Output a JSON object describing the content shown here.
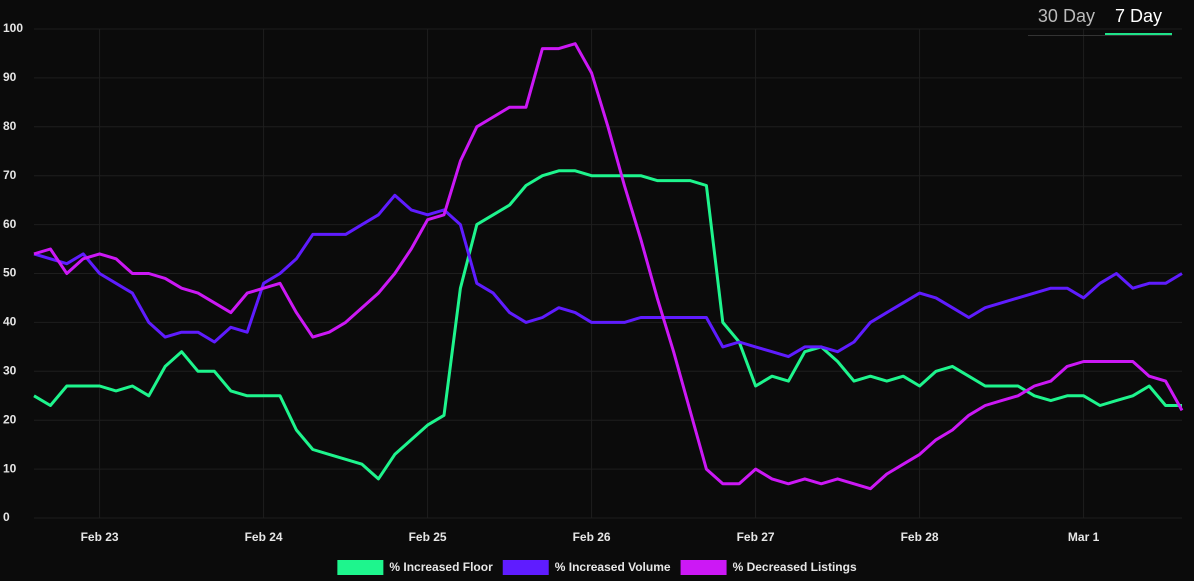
{
  "tabs": [
    "30 Day",
    "7 Day"
  ],
  "selected_tab": 1,
  "chart_data": {
    "type": "line",
    "x": [
      -0.4,
      -0.3,
      -0.2,
      -0.1,
      0,
      0.1,
      0.2,
      0.3,
      0.4,
      0.5,
      0.6,
      0.7,
      0.8,
      0.9,
      1,
      1.1,
      1.2,
      1.3,
      1.4,
      1.5,
      1.6,
      1.7,
      1.8,
      1.9,
      2,
      2.1,
      2.2,
      2.3,
      2.4,
      2.5,
      2.6,
      2.7,
      2.8,
      2.9,
      3,
      3.1,
      3.2,
      3.3,
      3.4,
      3.5,
      3.6,
      3.7,
      3.8,
      3.9,
      4,
      4.1,
      4.2,
      4.3,
      4.4,
      4.5,
      4.6,
      4.7,
      4.8,
      4.9,
      5,
      5.1,
      5.2,
      5.3,
      5.4,
      5.5,
      5.6,
      5.7,
      5.8,
      5.9,
      6,
      6.1,
      6.2,
      6.3,
      6.4,
      6.5,
      6.6
    ],
    "series": [
      {
        "name": "% Increased Floor",
        "color": "#1ef58d",
        "values": [
          25,
          23,
          27,
          27,
          27,
          26,
          27,
          25,
          31,
          34,
          30,
          30,
          26,
          25,
          25,
          25,
          18,
          14,
          13,
          12,
          11,
          8,
          13,
          16,
          19,
          21,
          47,
          60,
          62,
          64,
          68,
          70,
          71,
          71,
          70,
          70,
          70,
          70,
          69,
          69,
          69,
          68,
          40,
          36,
          27,
          29,
          28,
          34,
          35,
          32,
          28,
          29,
          28,
          29,
          27,
          30,
          31,
          29,
          27,
          27,
          27,
          25,
          24,
          25,
          25,
          23,
          24,
          25,
          27,
          23,
          23
        ]
      },
      {
        "name": "% Increased Volume",
        "color": "#5f1cff",
        "values": [
          54,
          53,
          52,
          54,
          50,
          48,
          46,
          40,
          37,
          38,
          38,
          36,
          39,
          38,
          48,
          50,
          53,
          58,
          58,
          58,
          60,
          62,
          66,
          63,
          62,
          63,
          60,
          48,
          46,
          42,
          40,
          41,
          43,
          42,
          40,
          40,
          40,
          41,
          41,
          41,
          41,
          41,
          35,
          36,
          35,
          34,
          33,
          35,
          35,
          34,
          36,
          40,
          42,
          44,
          46,
          45,
          43,
          41,
          43,
          44,
          45,
          46,
          47,
          47,
          45,
          48,
          50,
          47,
          48,
          48,
          50
        ]
      },
      {
        "name": "% Decreased Listings",
        "color": "#cc18f5",
        "values": [
          54,
          55,
          50,
          53,
          54,
          53,
          50,
          50,
          49,
          47,
          46,
          44,
          42,
          46,
          47,
          48,
          42,
          37,
          38,
          40,
          43,
          46,
          50,
          55,
          61,
          62,
          73,
          80,
          82,
          84,
          84,
          96,
          96,
          97,
          91,
          80,
          68,
          57,
          45,
          34,
          22,
          10,
          7,
          7,
          10,
          8,
          7,
          8,
          7,
          8,
          7,
          6,
          9,
          11,
          13,
          16,
          18,
          21,
          23,
          24,
          25,
          27,
          28,
          31,
          32,
          32,
          32,
          32,
          29,
          28,
          22
        ]
      }
    ],
    "xlim": [
      -0.4,
      6.6
    ],
    "xticks": [
      {
        "value": 0,
        "label": "Feb 23"
      },
      {
        "value": 1,
        "label": "Feb 24"
      },
      {
        "value": 2,
        "label": "Feb 25"
      },
      {
        "value": 3,
        "label": "Feb 26"
      },
      {
        "value": 4,
        "label": "Feb 27"
      },
      {
        "value": 5,
        "label": "Feb 28"
      },
      {
        "value": 6,
        "label": "Mar 1"
      }
    ],
    "ylim": [
      0,
      100
    ],
    "yticks": [
      0,
      10,
      20,
      30,
      40,
      50,
      60,
      70,
      80,
      90,
      100
    ],
    "grid": true
  }
}
